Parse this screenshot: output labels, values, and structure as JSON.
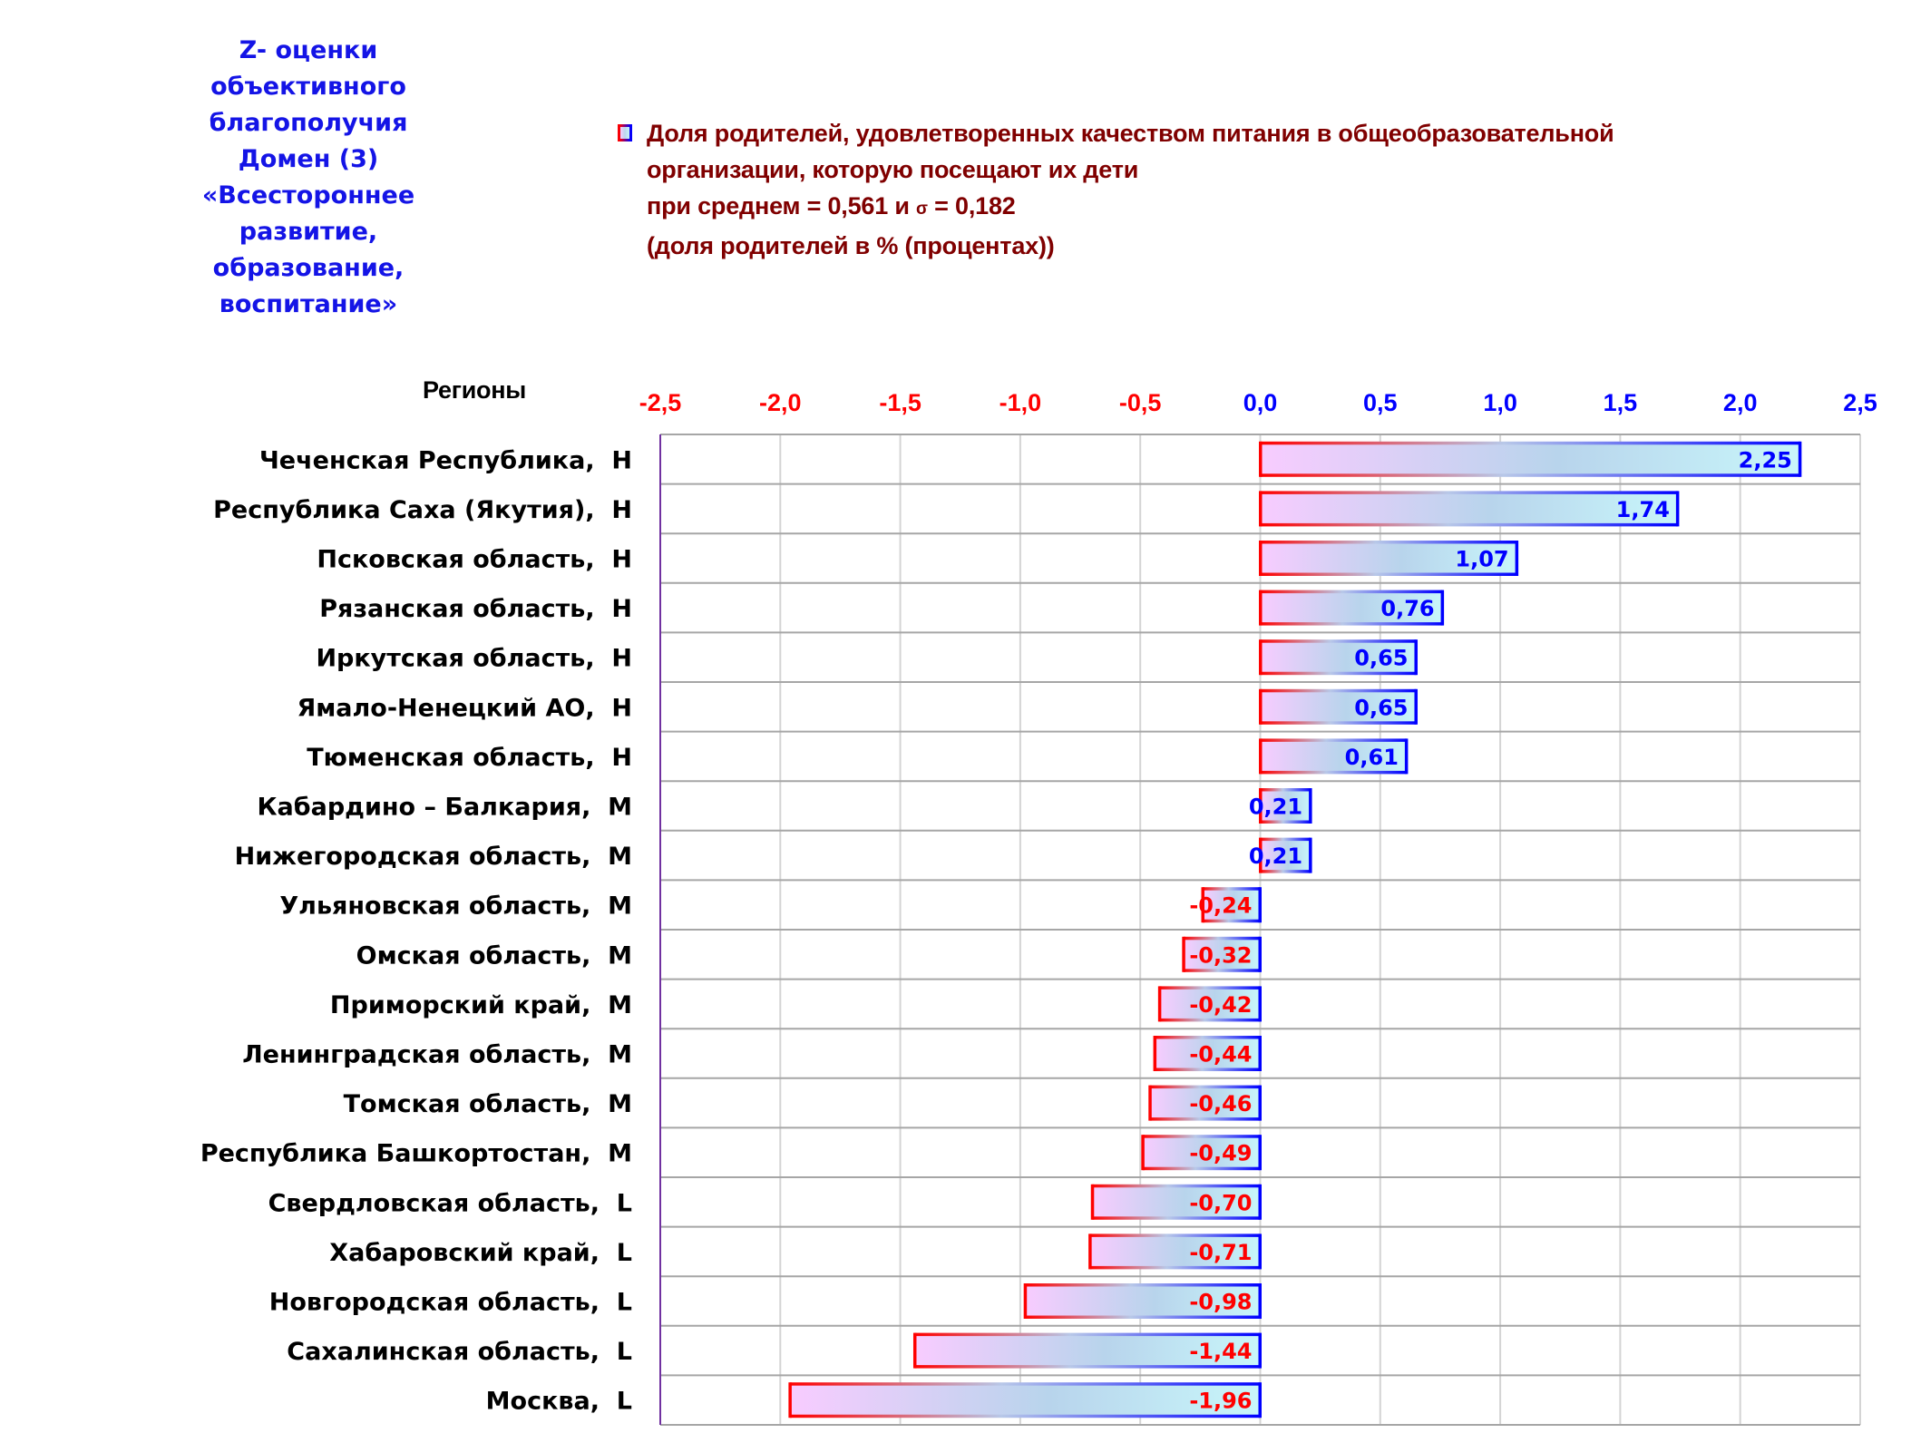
{
  "title_lines": [
    "Z- оценки",
    "объективного",
    "благополучия",
    "Домен (3)",
    "«Всестороннее",
    "развитие,",
    "образование,",
    "воспитание»"
  ],
  "legend": {
    "icon": "gradient-bar-swatch-icon",
    "line1": "Доля родителей, удовлетворенных качеством питания в общеобразовательной",
    "line2": "организации, которую посещают их дети",
    "line3_prefix": "при среднем = 0,561  и ",
    "line3_sigma": "σ",
    "line3_suffix": " = 0,182",
    "line4": "(доля родителей в % (процентах))"
  },
  "colors": {
    "title": "#1414e6",
    "legend_text": "#800000",
    "negative": "#ff0000",
    "positive": "#0000ff",
    "grid": "#d4d4d4",
    "row_line": "#a6a6a6",
    "axis_line": "#7030a0",
    "fill_start": "#f8ccff",
    "fill_mid": "#b8d4ec",
    "fill_end": "#c8f6fa"
  },
  "chart_data": {
    "type": "bar",
    "orientation": "horizontal",
    "title": "Доля родителей, удовлетворенных качеством питания в общеобразовательной организации, которую посещают их дети",
    "ylabel": "Регионы",
    "xlabel": "",
    "xlim": [
      -2.5,
      2.5
    ],
    "xticks": [
      -2.5,
      -2.0,
      -1.5,
      -1.0,
      -0.5,
      0.0,
      0.5,
      1.0,
      1.5,
      2.0,
      2.5
    ],
    "xtick_labels": [
      "-2,5",
      "-2,0",
      "-1,5",
      "-1,0",
      "-0,5",
      "0,0",
      "0,5",
      "1,0",
      "1,5",
      "2,0",
      "2,5"
    ],
    "xaxis_position": "top",
    "grid": true,
    "legend_position": "top",
    "categories": [
      "Чеченская Республика,  Н",
      "Республика Саха (Якутия),  Н",
      "Псковская область,  Н",
      "Рязанская область,  Н",
      "Иркутская область,  Н",
      "Ямало-Ненецкий АО,  Н",
      "Тюменская область,  Н",
      "Кабардино – Балкария,  М",
      "Нижегородская область,  М",
      "Ульяновская область,  М",
      "Омская область,  М",
      "Приморский край,  М",
      "Ленинградская область,  М",
      "Томская область,  М",
      "Республика Башкортостан,  М",
      "Свердловская область,  L",
      "Хабаровский край,  L",
      "Новгородская область,  L",
      "Сахалинская область,  L",
      "Москва,  L"
    ],
    "series": [
      {
        "name": "Доля родителей, удовлетворенных качеством питания в общеобразовательной организации, которую посещают их дети",
        "values": [
          2.25,
          1.74,
          1.07,
          0.76,
          0.65,
          0.65,
          0.61,
          0.21,
          0.21,
          -0.24,
          -0.32,
          -0.42,
          -0.44,
          -0.46,
          -0.49,
          -0.7,
          -0.71,
          -0.98,
          -1.44,
          -1.96
        ],
        "value_labels": [
          "2,25",
          "1,74",
          "1,07",
          "0,76",
          "0,65",
          "0,65",
          "0,61",
          "0,21",
          "0,21",
          "-0,24",
          "-0,32",
          "-0,42",
          "-0,44",
          "-0,46",
          "-0,49",
          "-0,70",
          "-0,71",
          "-0,98",
          "-1,44",
          "-1,96"
        ]
      }
    ]
  }
}
